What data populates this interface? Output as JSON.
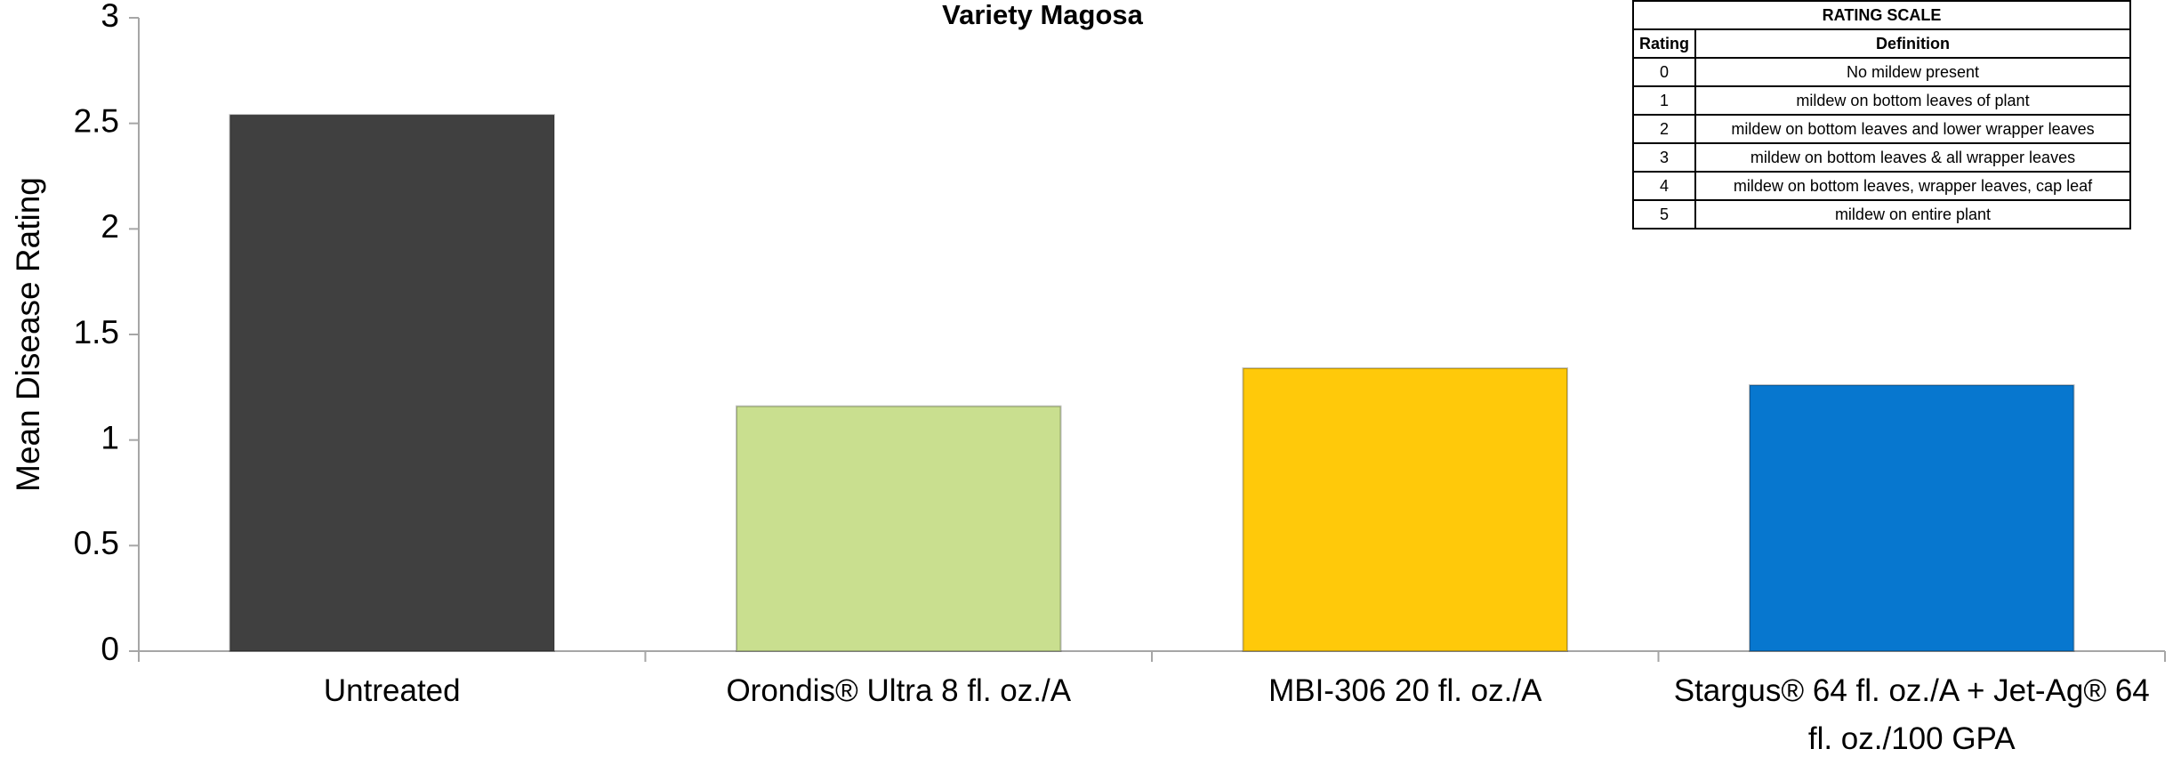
{
  "chart_data": {
    "type": "bar",
    "title": "Variety Magosa",
    "y_label": "Mean Disease Rating",
    "categories": [
      "Untreated",
      "Orondis® Ultra 8 fl. oz./A",
      "MBI-306 20 fl. oz./A",
      "Stargus® 64 fl. oz./A + Jet-Ag® 64 fl. oz./100 GPA"
    ],
    "values": [
      2.54,
      1.16,
      1.34,
      1.26
    ],
    "colors": [
      "#404040",
      "#c9df8f",
      "#ffc90a",
      "#0777cf"
    ],
    "ylim": [
      0,
      3
    ],
    "yticks": [
      0,
      0.5,
      1,
      1.5,
      2,
      2.5,
      3
    ],
    "grid": false
  },
  "rating_scale": {
    "title": "RATING SCALE",
    "header": [
      "Rating",
      "Definition"
    ],
    "rows": [
      [
        "0",
        "No mildew present"
      ],
      [
        "1",
        "mildew on bottom leaves of plant"
      ],
      [
        "2",
        "mildew on bottom leaves and lower wrapper leaves"
      ],
      [
        "3",
        "mildew on bottom leaves & all wrapper leaves"
      ],
      [
        "4",
        "mildew on bottom leaves, wrapper leaves, cap leaf"
      ],
      [
        "5",
        "mildew on entire plant"
      ]
    ]
  }
}
